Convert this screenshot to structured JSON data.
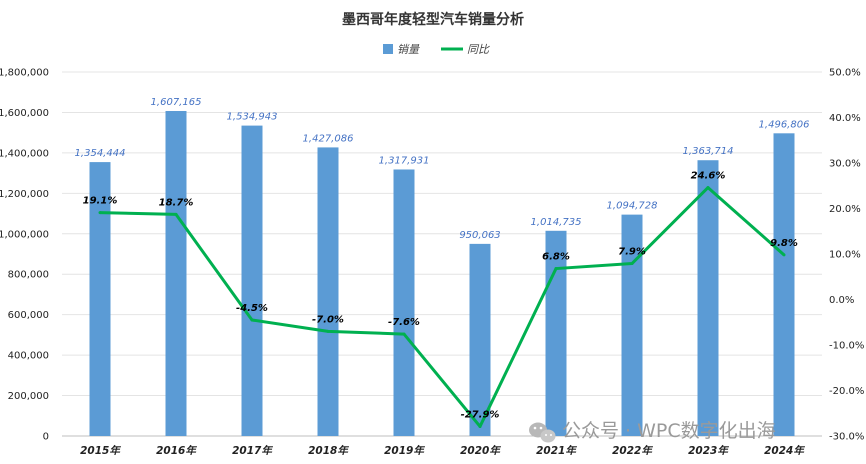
{
  "chart_data": {
    "type": "bar",
    "title": "墨西哥年度轻型汽车销量分析",
    "categories": [
      "2015年",
      "2016年",
      "2017年",
      "2018年",
      "2019年",
      "2020年",
      "2021年",
      "2022年",
      "2023年",
      "2024年"
    ],
    "series": [
      {
        "name": "销量",
        "type": "bar",
        "axis": "left",
        "color": "#5B9BD5",
        "values": [
          1354444,
          1607165,
          1534943,
          1427086,
          1317931,
          950063,
          1014735,
          1094728,
          1363714,
          1496806
        ],
        "labels": [
          "1,354,444",
          "1,607,165",
          "1,534,943",
          "1,427,086",
          "1,317,931",
          "950,063",
          "1,014,735",
          "1,094,728",
          "1,363,714",
          "1,496,806"
        ]
      },
      {
        "name": "同比",
        "type": "line",
        "axis": "right",
        "color": "#00B050",
        "values": [
          19.1,
          18.7,
          -4.5,
          -7.0,
          -7.6,
          -27.9,
          6.8,
          7.9,
          24.6,
          9.8
        ],
        "labels": [
          "19.1%",
          "18.7%",
          "-4.5%",
          "-7.0%",
          "-7.6%",
          "-27.9%",
          "6.8%",
          "7.9%",
          "24.6%",
          "9.8%"
        ]
      }
    ],
    "y_left": {
      "ylim": [
        0,
        1800000
      ],
      "ticks": [
        0,
        200000,
        400000,
        600000,
        800000,
        1000000,
        1200000,
        1400000,
        1600000,
        1800000
      ],
      "tick_labels": [
        "0",
        "200,000",
        "400,000",
        "600,000",
        "800,000",
        "1,000,000",
        "1,200,000",
        "1,400,000",
        "1,600,000",
        "1,800,000"
      ]
    },
    "y_right": {
      "ylim": [
        -30,
        50
      ],
      "ticks": [
        50,
        40,
        30,
        20,
        10,
        0,
        -10,
        -20,
        -30
      ],
      "tick_labels": [
        "50.0%",
        "40.0%",
        "30.0%",
        "20.0%",
        "10.0%",
        "0.0%",
        "-10.0%",
        "-20.0%",
        "-30.0%"
      ]
    },
    "grid": true,
    "legend": "top-center"
  },
  "watermark": {
    "text": "公众号 · WPC数字化出海",
    "icon": "wechat-icon"
  }
}
